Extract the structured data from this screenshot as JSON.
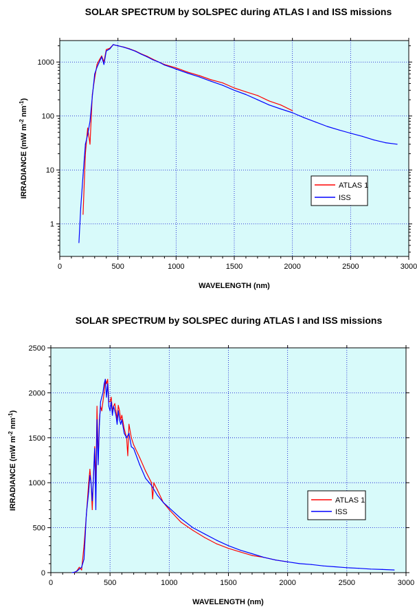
{
  "chart_data": [
    {
      "type": "line",
      "title": "SOLAR SPECTRUM by SOLSPEC during ATLAS I and ISS missions",
      "xlabel": "WAVELENGTH (nm)",
      "ylabel": [
        "IRRADIANCE (mW m",
        "-2",
        " nm",
        "-1",
        ")"
      ],
      "xscale": "linear",
      "yscale": "log",
      "xlim": [
        0,
        3000
      ],
      "ylim": [
        0.25,
        2500
      ],
      "xticks": [
        0,
        500,
        1000,
        1500,
        2000,
        2500,
        3000
      ],
      "yticks": [
        1,
        10,
        100,
        1000
      ],
      "ytick_labels": [
        "1",
        "10",
        "100",
        "1000"
      ],
      "grid": true,
      "plot_background": "#d8fafa",
      "legend_position": "right",
      "series": [
        {
          "name": "ATLAS 1",
          "color": "#ff0000",
          "x": [
            200,
            220,
            240,
            260,
            280,
            300,
            320,
            340,
            360,
            380,
            400,
            430,
            460,
            480,
            500,
            550,
            600,
            650,
            700,
            750,
            800,
            850,
            900,
            1000,
            1100,
            1200,
            1300,
            1400,
            1500,
            1600,
            1700,
            1800,
            1900,
            2000
          ],
          "y": [
            1.5,
            20,
            60,
            30,
            250,
            500,
            900,
            1100,
            1300,
            1000,
            1700,
            1800,
            2100,
            2050,
            2000,
            1900,
            1760,
            1600,
            1420,
            1280,
            1130,
            1000,
            900,
            780,
            650,
            560,
            470,
            410,
            330,
            280,
            240,
            190,
            160,
            125
          ]
        },
        {
          "name": "ISS",
          "color": "#0000ff",
          "x": [
            165,
            180,
            200,
            220,
            240,
            260,
            280,
            300,
            320,
            340,
            360,
            380,
            400,
            430,
            460,
            480,
            500,
            550,
            600,
            650,
            700,
            750,
            800,
            850,
            900,
            1000,
            1100,
            1200,
            1300,
            1400,
            1500,
            1600,
            1700,
            1800,
            1900,
            2000,
            2100,
            2200,
            2300,
            2400,
            2500,
            2600,
            2700,
            2800,
            2900
          ],
          "y": [
            0.45,
            2,
            8,
            30,
            45,
            80,
            230,
            600,
            800,
            1000,
            1250,
            900,
            1600,
            1750,
            2100,
            2050,
            2000,
            1880,
            1740,
            1580,
            1400,
            1250,
            1100,
            1000,
            880,
            740,
            620,
            530,
            440,
            370,
            300,
            250,
            200,
            160,
            135,
            115,
            93,
            77,
            64,
            55,
            48,
            42,
            36,
            32,
            30
          ]
        }
      ]
    },
    {
      "type": "line",
      "title": "SOLAR SPECTRUM by SOLSPEC during ATLAS I and ISS missions",
      "xlabel": "WAVELENGTH (nm)",
      "ylabel": [
        "IRRADIANCE (mW m",
        "-2",
        " nm",
        "-1",
        ")"
      ],
      "xscale": "linear",
      "yscale": "linear",
      "xlim": [
        0,
        3000
      ],
      "ylim": [
        0,
        2500
      ],
      "xticks": [
        0,
        500,
        1000,
        1500,
        2000,
        2500,
        3000
      ],
      "yticks": [
        0,
        500,
        1000,
        1500,
        2000,
        2500
      ],
      "ytick_labels": [
        "0",
        "500",
        "1000",
        "1500",
        "2000",
        "2500"
      ],
      "grid": true,
      "plot_background": "#d8fafa",
      "legend_position": "right",
      "series": [
        {
          "name": "ATLAS 1",
          "color": "#ff0000",
          "x": [
            200,
            220,
            240,
            260,
            280,
            300,
            320,
            330,
            340,
            350,
            360,
            370,
            380,
            390,
            400,
            410,
            420,
            430,
            440,
            450,
            460,
            470,
            480,
            490,
            500,
            510,
            520,
            530,
            540,
            550,
            560,
            570,
            580,
            590,
            600,
            620,
            640,
            650,
            660,
            680,
            700,
            750,
            800,
            850,
            860,
            870,
            880,
            900,
            950,
            1000,
            1100,
            1200,
            1300,
            1400,
            1500,
            1600,
            1700,
            1800,
            1900,
            2000
          ],
          "y": [
            0,
            20,
            60,
            30,
            300,
            640,
            1000,
            1150,
            1000,
            700,
            1050,
            1400,
            1000,
            1850,
            1250,
            1700,
            1850,
            1800,
            1900,
            2000,
            2150,
            2100,
            2150,
            1900,
            1900,
            1950,
            1800,
            1850,
            1880,
            1800,
            1700,
            1860,
            1800,
            1700,
            1750,
            1600,
            1500,
            1300,
            1650,
            1500,
            1420,
            1280,
            1130,
            1000,
            820,
            1000,
            970,
            920,
            780,
            700,
            560,
            470,
            390,
            320,
            270,
            230,
            190,
            170,
            140,
            120
          ]
        },
        {
          "name": "ISS",
          "color": "#0000ff",
          "x": [
            180,
            200,
            220,
            240,
            260,
            280,
            300,
            320,
            330,
            340,
            350,
            360,
            370,
            380,
            390,
            400,
            410,
            420,
            430,
            440,
            450,
            460,
            470,
            480,
            490,
            500,
            510,
            520,
            530,
            540,
            550,
            560,
            570,
            580,
            590,
            600,
            620,
            640,
            660,
            680,
            700,
            750,
            800,
            850,
            900,
            950,
            1000,
            1100,
            1200,
            1300,
            1400,
            1500,
            1600,
            1700,
            1800,
            1900,
            2000,
            2100,
            2200,
            2300,
            2400,
            2500,
            2600,
            2700,
            2800,
            2900
          ],
          "y": [
            0,
            5,
            15,
            40,
            60,
            150,
            650,
            900,
            1080,
            1000,
            800,
            1050,
            1380,
            700,
            1700,
            1200,
            1650,
            1900,
            1950,
            2000,
            2100,
            2150,
            1950,
            2100,
            1850,
            1800,
            1900,
            1750,
            1850,
            1800,
            1750,
            1650,
            1800,
            1700,
            1650,
            1700,
            1550,
            1500,
            1550,
            1400,
            1380,
            1200,
            1050,
            970,
            860,
            780,
            720,
            600,
            500,
            430,
            360,
            300,
            250,
            210,
            170,
            140,
            120,
            100,
            90,
            75,
            65,
            55,
            48,
            40,
            35,
            30
          ]
        }
      ]
    }
  ]
}
